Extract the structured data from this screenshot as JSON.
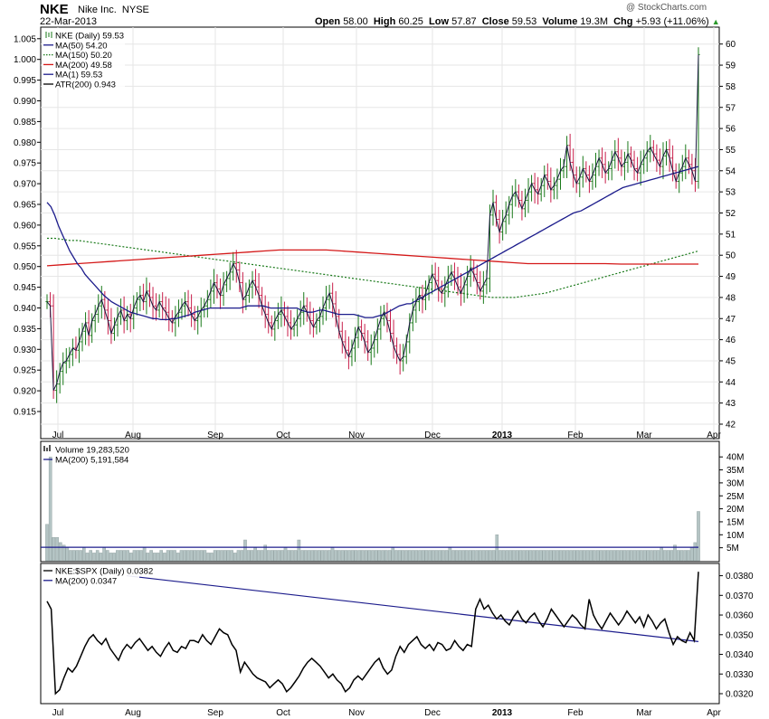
{
  "header": {
    "ticker": "NKE",
    "company": "Nike Inc.",
    "exchange": "NYSE",
    "date": "22-Mar-2013",
    "open_label": "Open",
    "open": "58.00",
    "high_label": "High",
    "high": "60.25",
    "low_label": "Low",
    "low": "57.87",
    "close_label": "Close",
    "close": "59.53",
    "volume_label": "Volume",
    "volume": "19.3M",
    "chg_label": "Chg",
    "chg": "+5.93 (+11.06%)",
    "watermark": "@ StockCharts.com"
  },
  "colors": {
    "price": "#1a1a40",
    "up": "#1a7a1a",
    "down": "#c81e4a",
    "ma50": "#1c1c8c",
    "ma150": "#1a7a1a",
    "ma200": "#d41818",
    "volume": "#b4c4c4",
    "ratio": "#000000"
  },
  "chart_data": [
    {
      "type": "line",
      "title": "NKE (Daily) 59.53",
      "legend": [
        {
          "label": "NKE (Daily) 59.53",
          "style": "ohlc"
        },
        {
          "label": "MA(50) 54.20",
          "color": "#1c1c8c"
        },
        {
          "label": "MA(150) 50.20",
          "color": "#1a7a1a",
          "dotted": true
        },
        {
          "label": "MA(200) 49.58",
          "color": "#d41818"
        },
        {
          "label": "MA(1) 59.53",
          "color": "#1c1c8c"
        },
        {
          "label": "ATR(200) 0.943",
          "color": "#000000"
        }
      ],
      "x_tick_labels": [
        "Jul",
        "Aug",
        "Sep",
        "Oct",
        "Nov",
        "Dec",
        "2013",
        "Feb",
        "Mar",
        "Apr"
      ],
      "left_axis": {
        "ticks": [
          "0.915",
          "0.920",
          "0.925",
          "0.930",
          "0.935",
          "0.940",
          "0.945",
          "0.950",
          "0.955",
          "0.960",
          "0.965",
          "0.970",
          "0.975",
          "0.980",
          "0.985",
          "0.990",
          "0.995",
          "1.000",
          "1.005"
        ]
      },
      "right_axis": {
        "ylim": [
          42,
          60
        ],
        "ticks": [
          42,
          43,
          44,
          45,
          46,
          47,
          48,
          49,
          50,
          51,
          52,
          53,
          54,
          55,
          56,
          57,
          58,
          59,
          60
        ]
      },
      "price_close": [
        47.8,
        47.6,
        43.6,
        43.9,
        44.5,
        44.9,
        45.0,
        45.3,
        45.6,
        45.5,
        45.9,
        46.4,
        46.8,
        46.2,
        46.9,
        47.2,
        47.6,
        47.9,
        47.4,
        46.9,
        46.3,
        46.7,
        47.1,
        47.4,
        46.9,
        47.2,
        47.0,
        47.5,
        47.9,
        48.1,
        47.8,
        48.3,
        48.0,
        47.6,
        47.4,
        47.8,
        47.5,
        47.3,
        47.0,
        46.8,
        47.1,
        47.3,
        47.6,
        47.8,
        47.5,
        47.2,
        46.9,
        47.1,
        47.4,
        47.6,
        47.9,
        48.3,
        48.7,
        48.4,
        48.1,
        48.6,
        48.9,
        49.2,
        49.6,
        49.3,
        48.7,
        47.9,
        48.1,
        48.5,
        48.8,
        48.5,
        48.1,
        47.6,
        47.2,
        46.8,
        46.5,
        46.9,
        47.2,
        47.4,
        47.1,
        46.8,
        46.5,
        46.7,
        47.0,
        47.3,
        47.6,
        47.3,
        46.9,
        46.6,
        46.9,
        47.1,
        47.5,
        47.9,
        48.2,
        47.7,
        47.1,
        46.4,
        45.9,
        45.5,
        45.2,
        45.6,
        46.1,
        46.6,
        46.3,
        45.9,
        45.4,
        45.6,
        46.0,
        46.5,
        47.0,
        47.3,
        46.9,
        46.3,
        45.7,
        45.3,
        45.0,
        45.2,
        45.9,
        46.8,
        47.4,
        47.8,
        48.1,
        47.9,
        48.2,
        48.7,
        49.1,
        48.8,
        48.4,
        48.2,
        48.5,
        48.9,
        49.2,
        48.9,
        48.5,
        48.2,
        48.6,
        49.0,
        49.4,
        49.1,
        48.7,
        48.3,
        48.6,
        48.9,
        51.9,
        52.5,
        51.7,
        51.1,
        51.6,
        51.9,
        52.4,
        52.8,
        53.0,
        52.6,
        52.2,
        52.6,
        53.0,
        53.4,
        53.1,
        52.9,
        53.3,
        53.8,
        53.5,
        53.1,
        53.3,
        53.6,
        54.0,
        54.2,
        55.2,
        54.4,
        53.8,
        53.4,
        53.7,
        54.1,
        53.8,
        53.5,
        53.8,
        54.2,
        54.6,
        54.3,
        53.9,
        54.1,
        54.5,
        54.9,
        54.6,
        54.2,
        54.4,
        54.8,
        54.5,
        54.1,
        53.9,
        54.3,
        54.6,
        54.9,
        55.1,
        54.8,
        54.5,
        54.2,
        54.7,
        55.0,
        54.6,
        54.0,
        53.5,
        53.9,
        54.2,
        54.6,
        54.3,
        54.0,
        53.5,
        59.5
      ],
      "ma50": [
        52.5,
        52.3,
        51.9,
        51.4,
        51.0,
        50.6,
        50.2,
        49.9,
        49.6,
        49.4,
        49.1,
        48.9,
        48.7,
        48.5,
        48.3,
        48.1,
        47.95,
        47.8,
        47.7,
        47.6,
        47.5,
        47.4,
        47.3,
        47.25,
        47.2,
        47.15,
        47.1,
        47.05,
        47.0,
        47.0,
        46.95,
        46.95,
        46.95,
        47.0,
        47.0,
        47.05,
        47.1,
        47.15,
        47.2,
        47.3,
        47.35,
        47.4,
        47.45,
        47.5,
        47.5,
        47.5,
        47.5,
        47.5,
        47.5,
        47.5,
        47.5,
        47.5,
        47.55,
        47.6,
        47.6,
        47.6,
        47.6,
        47.6,
        47.55,
        47.5,
        47.5,
        47.5,
        47.5,
        47.5,
        47.5,
        47.5,
        47.5,
        47.4,
        47.35,
        47.3,
        47.3,
        47.35,
        47.4,
        47.4,
        47.35,
        47.3,
        47.25,
        47.2,
        47.2,
        47.2,
        47.2,
        47.2,
        47.15,
        47.1,
        47.05,
        47.05,
        47.05,
        47.1,
        47.15,
        47.2,
        47.3,
        47.4,
        47.5,
        47.6,
        47.65,
        47.7,
        47.7,
        47.8,
        47.9,
        48.0,
        48.1,
        48.2,
        48.3,
        48.4,
        48.5,
        48.6,
        48.7,
        48.8,
        48.9,
        49.0,
        49.1,
        49.2,
        49.3,
        49.4,
        49.5,
        49.6,
        49.7,
        49.8,
        49.9,
        50.0,
        50.1,
        50.2,
        50.3,
        50.4,
        50.5,
        50.6,
        50.7,
        50.8,
        50.9,
        51.0,
        51.1,
        51.2,
        51.3,
        51.4,
        51.5,
        51.6,
        51.7,
        51.8,
        51.9,
        52.0,
        52.05,
        52.1,
        52.2,
        52.3,
        52.4,
        52.5,
        52.6,
        52.7,
        52.8,
        52.9,
        53.0,
        53.1,
        53.2,
        53.25,
        53.3,
        53.35,
        53.4,
        53.45,
        53.5,
        53.55,
        53.6,
        53.65,
        53.7,
        53.75,
        53.8,
        53.85,
        53.9,
        53.95,
        54.0,
        54.05,
        54.1,
        54.15,
        54.2
      ],
      "ma150": [
        50.8,
        50.8,
        50.75,
        50.7,
        50.7,
        50.65,
        50.6,
        50.55,
        50.5,
        50.45,
        50.4,
        50.35,
        50.3,
        50.25,
        50.2,
        50.15,
        50.1,
        50.05,
        50.0,
        49.95,
        49.9,
        49.85,
        49.8,
        49.75,
        49.7,
        49.65,
        49.6,
        49.55,
        49.5,
        49.45,
        49.4,
        49.35,
        49.3,
        49.25,
        49.2,
        49.15,
        49.1,
        49.05,
        49.0,
        48.95,
        48.9,
        48.85,
        48.8,
        48.75,
        48.7,
        48.65,
        48.6,
        48.55,
        48.5,
        48.45,
        48.4,
        48.35,
        48.3,
        48.25,
        48.2,
        48.15,
        48.1,
        48.05,
        48.0,
        48.0,
        48.0,
        48.0,
        48.05,
        48.1,
        48.15,
        48.2,
        48.3,
        48.4,
        48.5,
        48.6,
        48.7,
        48.8,
        48.9,
        49.0,
        49.1,
        49.2,
        49.3,
        49.4,
        49.5,
        49.6,
        49.7,
        49.8,
        49.9,
        50.0,
        50.1,
        50.2
      ],
      "ma200": [
        49.5,
        49.55,
        49.6,
        49.65,
        49.7,
        49.75,
        49.8,
        49.85,
        49.9,
        49.95,
        50.0,
        50.05,
        50.1,
        50.15,
        50.2,
        50.25,
        50.25,
        50.25,
        50.25,
        50.2,
        50.15,
        50.1,
        50.05,
        50.0,
        49.95,
        49.9,
        49.85,
        49.8,
        49.75,
        49.7,
        49.65,
        49.6,
        49.6,
        49.6,
        49.6,
        49.6,
        49.6,
        49.58,
        49.58,
        49.58,
        49.58,
        49.58,
        49.58
      ],
      "volume_panel": {
        "legend": [
          {
            "label": "Volume 19,283,520"
          },
          {
            "label": "MA(200) 5,191,584",
            "color": "#1c1c8c"
          }
        ],
        "ylim": [
          0,
          45
        ],
        "ticks": [
          "5M",
          "10M",
          "15M",
          "20M",
          "25M",
          "30M",
          "35M",
          "40M"
        ],
        "ma200": 5.19,
        "values": [
          14,
          40,
          9,
          9,
          7,
          6,
          5,
          4,
          4,
          4,
          4,
          5,
          3,
          4,
          3,
          4,
          3,
          5,
          4,
          3,
          3,
          4,
          4,
          4,
          4,
          3,
          4,
          4,
          4,
          5,
          3,
          4,
          3,
          3,
          4,
          3,
          4,
          4,
          4,
          3,
          4,
          4,
          4,
          4,
          4,
          4,
          4,
          4,
          3,
          3,
          4,
          4,
          4,
          4,
          4,
          4,
          3,
          4,
          4,
          8,
          4,
          4,
          5,
          4,
          4,
          6,
          4,
          4,
          4,
          4,
          4,
          5,
          4,
          4,
          4,
          8,
          4,
          4,
          4,
          4,
          4,
          4,
          4,
          4,
          4,
          5,
          4,
          4,
          4,
          4,
          4,
          4,
          4,
          4,
          4,
          4,
          4,
          4,
          4,
          4,
          4,
          4,
          4,
          5,
          4,
          4,
          4,
          4,
          4,
          4,
          4,
          4,
          4,
          4,
          4,
          4,
          4,
          4,
          4,
          4,
          5,
          4,
          4,
          4,
          4,
          4,
          4,
          4,
          4,
          4,
          4,
          4,
          4,
          4,
          10,
          4,
          4,
          4,
          4,
          4,
          4,
          4,
          4,
          4,
          4,
          4,
          4,
          4,
          4,
          4,
          4,
          4,
          4,
          4,
          4,
          4,
          4,
          4,
          4,
          4,
          4,
          4,
          4,
          4,
          4,
          4,
          4,
          4,
          4,
          4,
          4,
          4,
          4,
          4,
          4,
          4,
          4,
          4,
          4,
          4,
          4,
          4,
          4,
          5,
          4,
          4,
          4,
          6,
          4,
          4,
          4,
          4,
          5,
          7,
          19
        ]
      },
      "ratio_panel": {
        "legend": [
          {
            "label": "NKE:$SPX (Daily) 0.0382"
          },
          {
            "label": "MA(200) 0.0347",
            "color": "#1c1c8c"
          }
        ],
        "ylim": [
          0.0315,
          0.0385
        ],
        "ticks": [
          "0.0320",
          "0.0330",
          "0.0340",
          "0.0350",
          "0.0360",
          "0.0370",
          "0.0380"
        ],
        "ma200_start": 0.038,
        "ma200_end": 0.03465,
        "values": [
          0.0367,
          0.0363,
          0.032,
          0.0322,
          0.0328,
          0.0333,
          0.0331,
          0.0334,
          0.0339,
          0.0344,
          0.0348,
          0.035,
          0.0347,
          0.0345,
          0.0348,
          0.0343,
          0.034,
          0.0337,
          0.0342,
          0.0345,
          0.0343,
          0.0346,
          0.0348,
          0.0345,
          0.0342,
          0.0344,
          0.0341,
          0.0339,
          0.0343,
          0.0346,
          0.0342,
          0.0341,
          0.0344,
          0.0343,
          0.0347,
          0.0347,
          0.0346,
          0.035,
          0.0347,
          0.0345,
          0.0349,
          0.0353,
          0.0351,
          0.035,
          0.0345,
          0.0342,
          0.0331,
          0.0336,
          0.0333,
          0.033,
          0.0328,
          0.0327,
          0.0326,
          0.0323,
          0.0325,
          0.0327,
          0.0325,
          0.0321,
          0.0323,
          0.0326,
          0.0329,
          0.0333,
          0.0336,
          0.0338,
          0.0336,
          0.0334,
          0.0331,
          0.0328,
          0.033,
          0.0327,
          0.0325,
          0.0321,
          0.0323,
          0.0327,
          0.0329,
          0.0327,
          0.033,
          0.0333,
          0.0336,
          0.0338,
          0.0333,
          0.033,
          0.0332,
          0.0339,
          0.0344,
          0.0341,
          0.0345,
          0.0347,
          0.0349,
          0.0345,
          0.0343,
          0.0345,
          0.0342,
          0.0346,
          0.0345,
          0.0342,
          0.0343,
          0.0347,
          0.0344,
          0.0342,
          0.0345,
          0.0344,
          0.0363,
          0.0368,
          0.0363,
          0.0365,
          0.0361,
          0.0358,
          0.036,
          0.0357,
          0.0355,
          0.0359,
          0.0362,
          0.0358,
          0.0356,
          0.0359,
          0.0361,
          0.0357,
          0.0354,
          0.0358,
          0.0363,
          0.036,
          0.0357,
          0.0354,
          0.0357,
          0.036,
          0.0358,
          0.0355,
          0.0353,
          0.0368,
          0.036,
          0.0356,
          0.0353,
          0.0357,
          0.0361,
          0.0358,
          0.0355,
          0.0358,
          0.0362,
          0.0359,
          0.0356,
          0.0359,
          0.0354,
          0.036,
          0.0357,
          0.0353,
          0.0356,
          0.0358,
          0.0351,
          0.0345,
          0.0349,
          0.0347,
          0.0346,
          0.0351,
          0.0347,
          0.0382
        ]
      }
    }
  ]
}
